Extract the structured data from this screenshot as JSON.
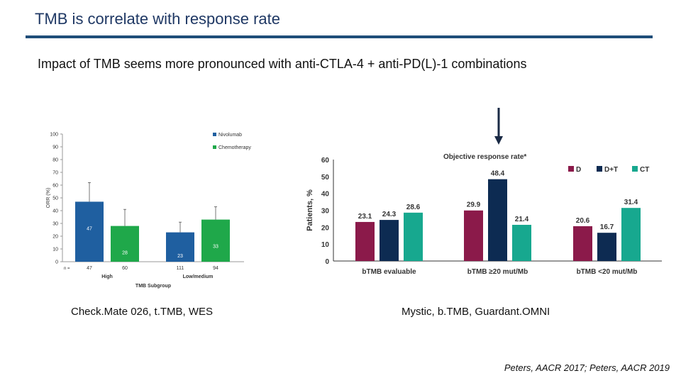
{
  "slide": {
    "title": "TMB is correlate with response rate",
    "subtitle": "Impact of TMB seems more pronounced with anti-CTLA-4 + anti-PD(L)-1 combinations",
    "caption_left": "Check.Mate 026, t.TMB, WES",
    "caption_right": "Mystic, b.TMB, Guardant.OMNI",
    "footer": "Peters, AACR 2017; Peters, AACR 2019"
  },
  "chart_data": [
    {
      "type": "bar",
      "title": "",
      "xlabel": "TMB Subgroup",
      "ylabel": "ORR (%)",
      "ylim": [
        0,
        100
      ],
      "yticks": [
        "0",
        "10",
        "20",
        "30",
        "40",
        "50",
        "60",
        "70",
        "80",
        "90",
        "100"
      ],
      "categories": [
        "High",
        "Low/medium"
      ],
      "n_label": "n =",
      "n_values": [
        [
          "47",
          "60"
        ],
        [
          "111",
          "94"
        ]
      ],
      "series": [
        {
          "name": "Nivolumab",
          "color": "#1f5fa0",
          "values": [
            47,
            23
          ],
          "labels": [
            "47",
            "23"
          ],
          "err_upper": [
            62,
            31
          ]
        },
        {
          "name": "Chemotherapy",
          "color": "#1fa84a",
          "values": [
            28,
            33
          ],
          "labels": [
            "28",
            "33"
          ],
          "err_upper": [
            41,
            43
          ]
        }
      ],
      "legend": "top-right",
      "grid": false
    },
    {
      "type": "bar",
      "title": "Objective response rate*",
      "xlabel": "",
      "ylabel": "Patients, %",
      "ylim": [
        0,
        60
      ],
      "yticks": [
        "0",
        "10",
        "20",
        "30",
        "40",
        "50",
        "60"
      ],
      "categories": [
        "bTMB evaluable",
        "bTMB ≥20 mut/Mb",
        "bTMB <20 mut/Mb"
      ],
      "series": [
        {
          "name": "D",
          "color": "#8b1a4a",
          "values": [
            23.1,
            29.9,
            20.6
          ],
          "labels": [
            "23.1",
            "29.9",
            "20.6"
          ]
        },
        {
          "name": "D+T",
          "color": "#0d2b52",
          "values": [
            24.3,
            48.4,
            16.7
          ],
          "labels": [
            "24.3",
            "48.4",
            "16.7"
          ]
        },
        {
          "name": "CT",
          "color": "#17a88f",
          "values": [
            28.6,
            21.4,
            31.4
          ],
          "labels": [
            "28.6",
            "21.4",
            "31.4"
          ]
        }
      ],
      "legend": "top-right",
      "grid": false
    }
  ]
}
